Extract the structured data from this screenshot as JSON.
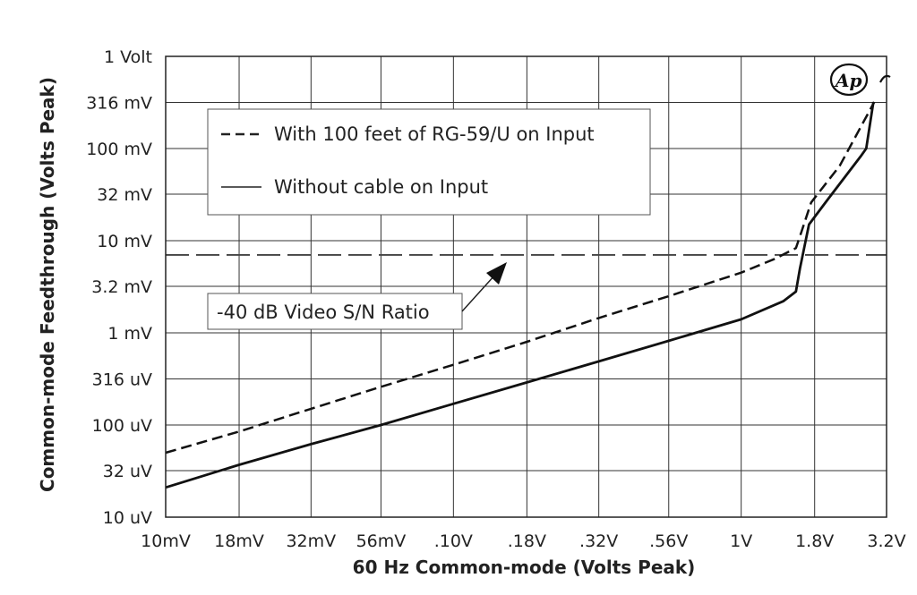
{
  "chart_data": {
    "type": "line",
    "x_scale": "log",
    "y_scale": "log",
    "xlim": [
      0.01,
      3.2
    ],
    "ylim": [
      1e-05,
      1
    ],
    "xlabel": "60 Hz Common-mode (Volts Peak)",
    "ylabel": "Common-mode Feedthrough (Volts Peak)",
    "x_ticks": [
      {
        "value": 0.01,
        "label": "10mV"
      },
      {
        "value": 0.018,
        "label": "18mV"
      },
      {
        "value": 0.032,
        "label": "32mV"
      },
      {
        "value": 0.056,
        "label": "56mV"
      },
      {
        "value": 0.1,
        "label": ".10V"
      },
      {
        "value": 0.18,
        "label": ".18V"
      },
      {
        "value": 0.32,
        "label": ".32V"
      },
      {
        "value": 0.56,
        "label": ".56V"
      },
      {
        "value": 1.0,
        "label": "1V"
      },
      {
        "value": 1.8,
        "label": "1.8V"
      },
      {
        "value": 3.2,
        "label": "3.2V"
      }
    ],
    "y_ticks": [
      {
        "value": 1e-05,
        "label": "10 uV"
      },
      {
        "value": 3.2e-05,
        "label": "32 uV"
      },
      {
        "value": 0.0001,
        "label": "100 uV"
      },
      {
        "value": 0.000316,
        "label": "316 uV"
      },
      {
        "value": 0.001,
        "label": "1 mV"
      },
      {
        "value": 0.0032,
        "label": "3.2 mV"
      },
      {
        "value": 0.01,
        "label": "10 mV"
      },
      {
        "value": 0.032,
        "label": "32 mV"
      },
      {
        "value": 0.1,
        "label": "100 mV"
      },
      {
        "value": 0.316,
        "label": "316 mV"
      },
      {
        "value": 1.0,
        "label": "1 Volt"
      }
    ],
    "grid": true,
    "legend_position": "top-left",
    "series": [
      {
        "name": "With 100 feet of RG-59/U on Input",
        "style": "dashed",
        "x": [
          0.01,
          0.018,
          0.032,
          0.056,
          0.1,
          0.18,
          0.32,
          0.56,
          1.0,
          1.3,
          1.55,
          1.62,
          1.75,
          2.2,
          2.9
        ],
        "y": [
          5e-05,
          8.5e-05,
          0.00015,
          0.00026,
          0.00045,
          0.0008,
          0.00145,
          0.0025,
          0.0045,
          0.0063,
          0.0083,
          0.0125,
          0.026,
          0.065,
          0.32
        ]
      },
      {
        "name": "Without cable on Input",
        "style": "solid",
        "x": [
          0.01,
          0.018,
          0.032,
          0.056,
          0.1,
          0.18,
          0.32,
          0.56,
          1.0,
          1.4,
          1.55,
          1.6,
          1.72,
          2.0,
          2.6,
          2.72,
          2.88
        ],
        "y": [
          2.1e-05,
          3.7e-05,
          6.2e-05,
          0.0001,
          0.00017,
          0.00029,
          0.00049,
          0.00082,
          0.0014,
          0.0022,
          0.0028,
          0.005,
          0.015,
          0.028,
          0.082,
          0.1,
          0.32
        ]
      }
    ],
    "reference_line": {
      "label": "-40 dB Video S/N Ratio",
      "y": 0.007,
      "style": "long-dash"
    },
    "logo": "Ap"
  },
  "legend": {
    "items": [
      {
        "label": "With 100 feet of RG-59/U on Input",
        "style": "dashed"
      },
      {
        "label": "Without cable on Input",
        "style": "solid"
      }
    ]
  },
  "annotation": {
    "label": "-40 dB Video S/N Ratio"
  }
}
